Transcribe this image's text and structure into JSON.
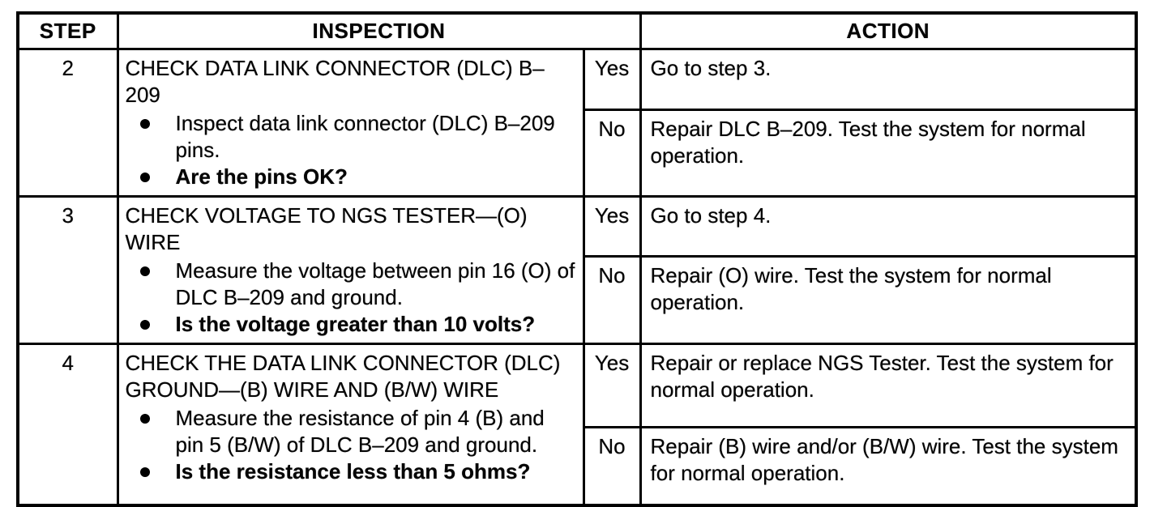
{
  "page": {
    "background": "#ffffff",
    "ink_color": "#000000",
    "kind": "scanned diagnostic troubleshooting table"
  },
  "table": {
    "headers": {
      "step": "STEP",
      "inspection": "INSPECTION",
      "action": "ACTION"
    },
    "rows": [
      {
        "step": "2",
        "title": "CHECK DATA LINK CONNECTOR (DLC) B–209",
        "bullets": [
          "Inspect data link connector (DLC) B–209 pins.",
          "Are the pins OK?"
        ],
        "yes": {
          "label": "Yes",
          "text": "Go to step 3."
        },
        "no": {
          "label": "No",
          "text": "Repair DLC B–209. Test the system for normal operation."
        }
      },
      {
        "step": "3",
        "title": "CHECK VOLTAGE TO NGS TESTER—(O) WIRE",
        "bullets": [
          "Measure the voltage between pin 16 (O) of DLC B–209 and ground.",
          "Is the voltage greater than 10 volts?"
        ],
        "yes": {
          "label": "Yes",
          "text": "Go to step 4."
        },
        "no": {
          "label": "No",
          "text": "Repair (O) wire. Test the system for normal operation."
        }
      },
      {
        "step": "4",
        "title": "CHECK THE DATA LINK CONNECTOR (DLC) GROUND—(B) WIRE AND (B/W) WIRE",
        "bullets": [
          "Measure the resistance of pin 4 (B) and pin 5 (B/W) of DLC B–209 and ground.",
          "Is the resistance less than 5 ohms?"
        ],
        "yes": {
          "label": "Yes",
          "text": "Repair or replace NGS Tester. Test the system for normal operation."
        },
        "no": {
          "label": "No",
          "text": "Repair (B) wire and/or (B/W) wire. Test the system for normal operation."
        }
      }
    ]
  }
}
